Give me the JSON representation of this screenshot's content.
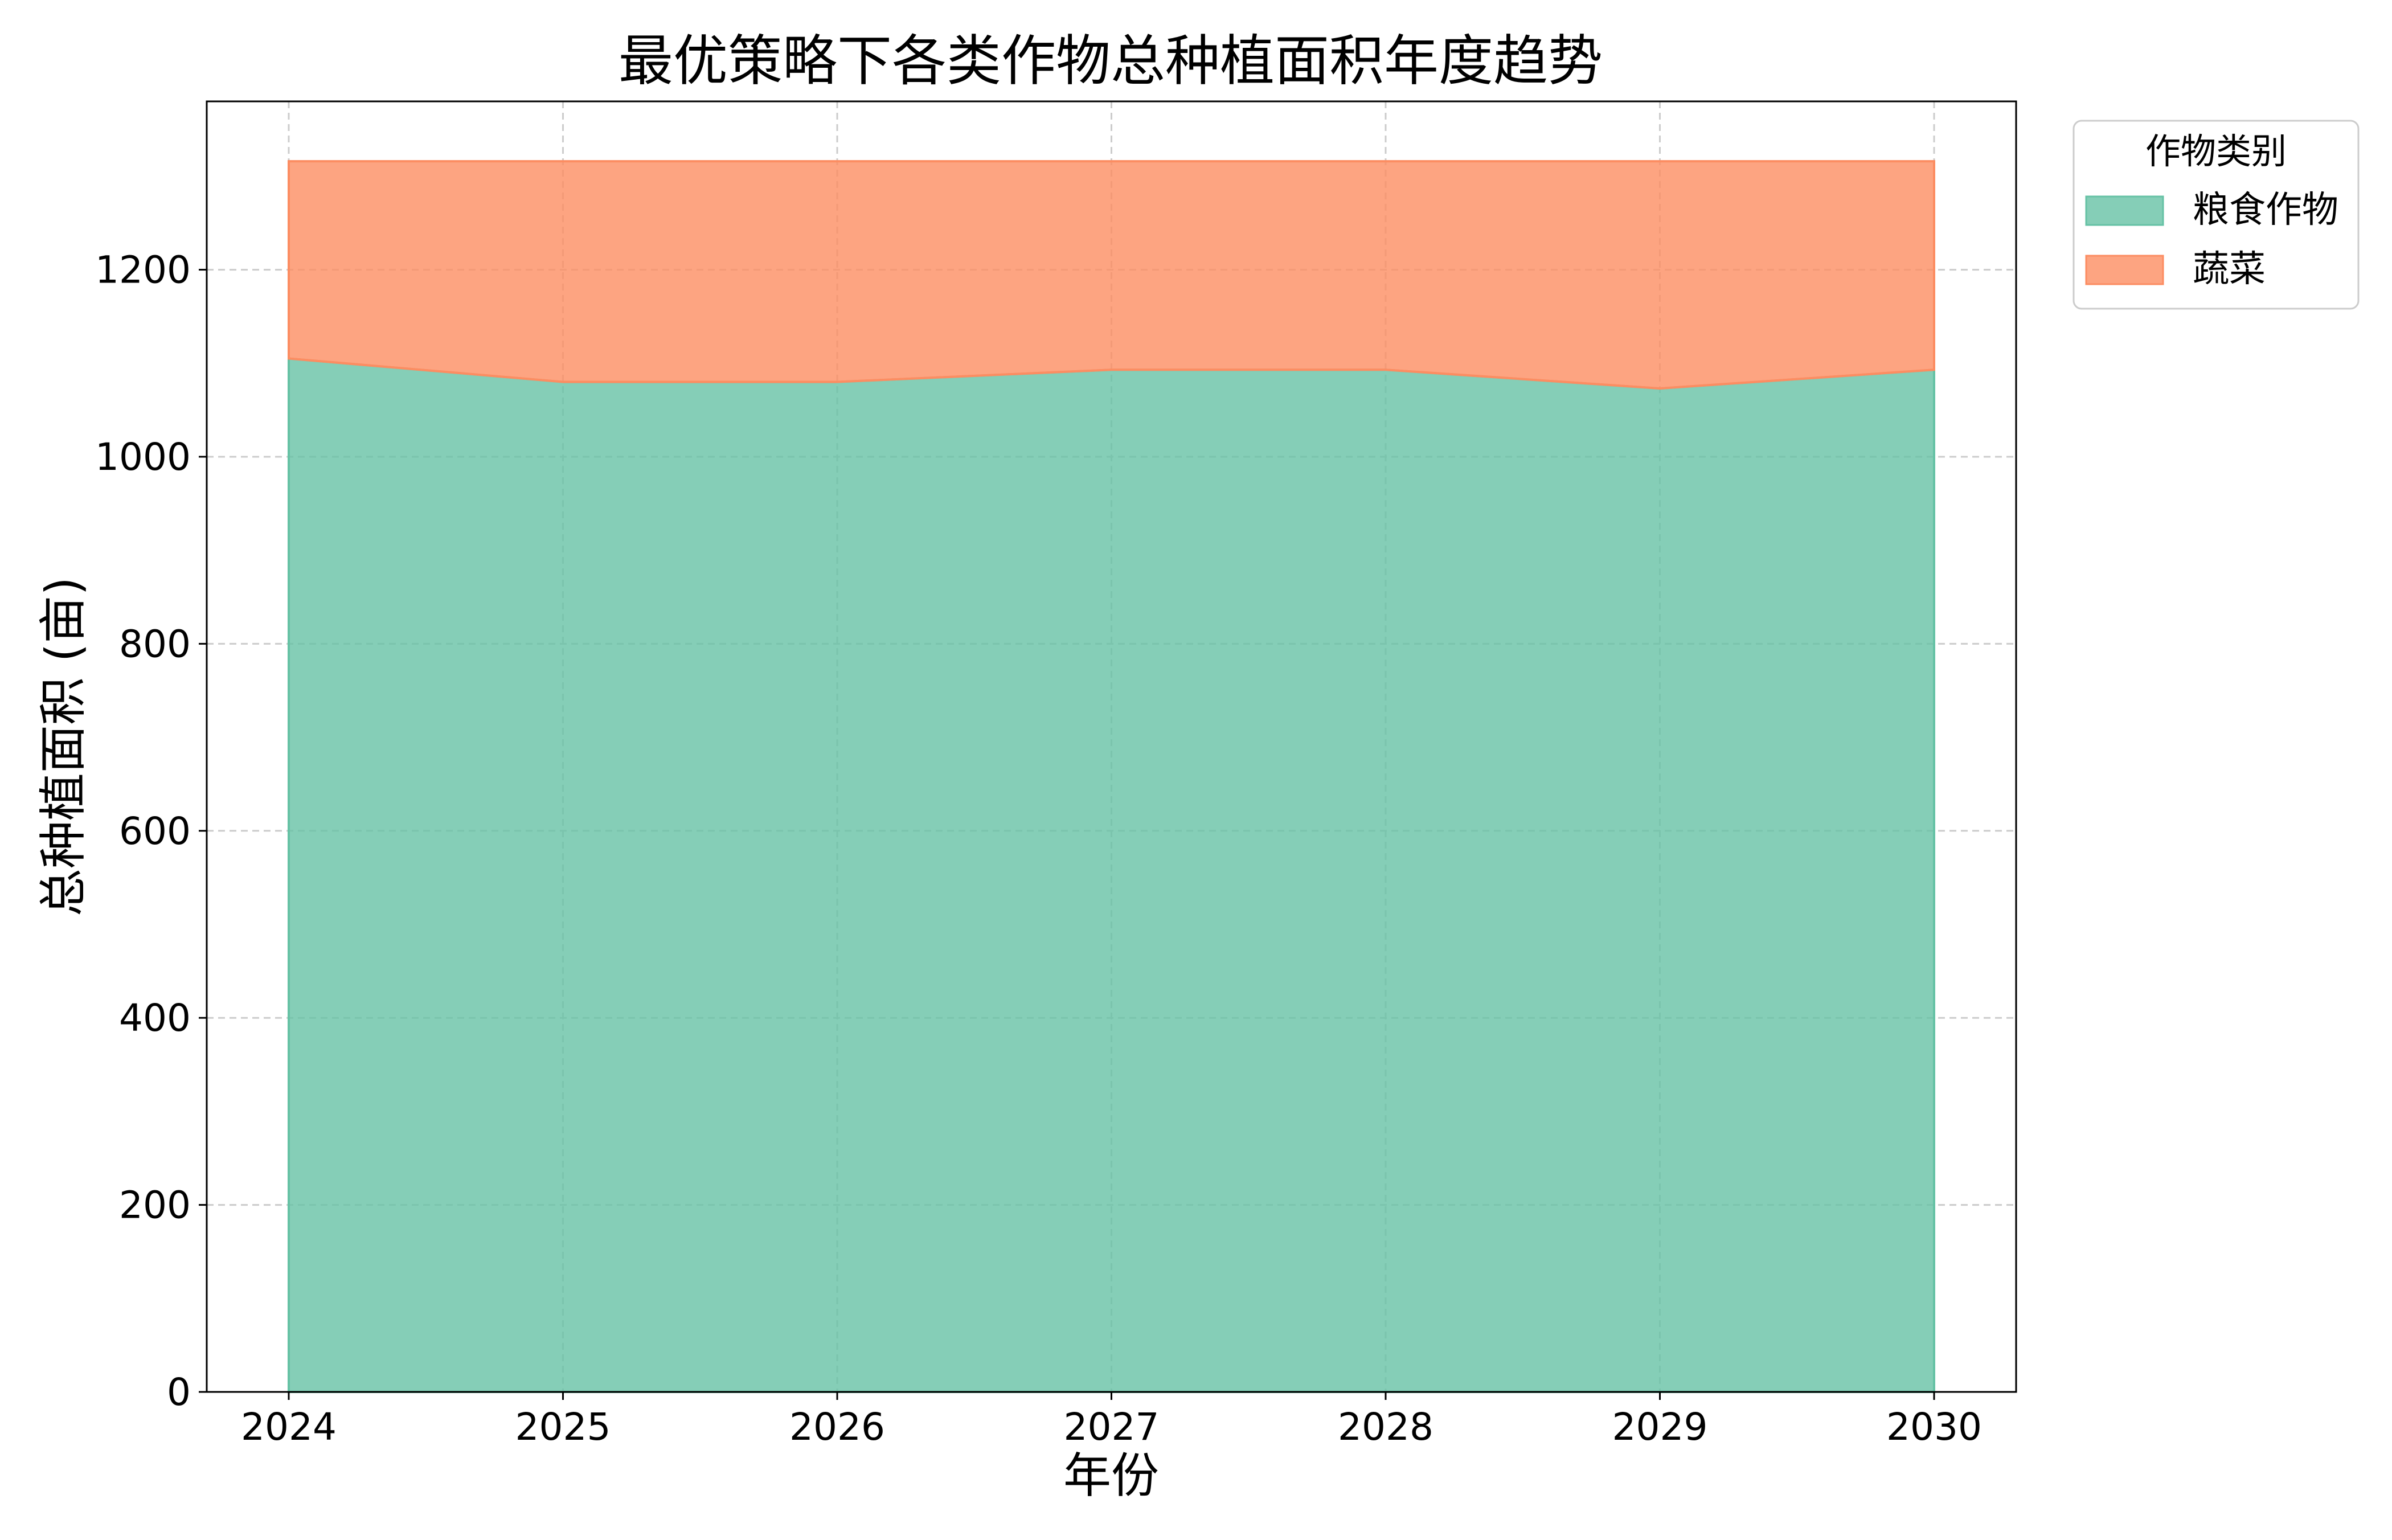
{
  "chart_data": {
    "type": "area",
    "stacked": true,
    "title": "最优策略下各类作物总种植面积年度趋势",
    "xlabel": "年份",
    "ylabel": "总种植面积 (亩)",
    "x": [
      "2024",
      "2025",
      "2026",
      "2027",
      "2028",
      "2029",
      "2030"
    ],
    "ylim": [
      0,
      1380
    ],
    "yticks": [
      0,
      200,
      400,
      600,
      800,
      1000,
      1200
    ],
    "grid": true,
    "legend": {
      "title": "作物类别",
      "placement": "outside-top-right"
    },
    "series": [
      {
        "name": "粮食作物",
        "color": "#66c2a5",
        "values": [
          1105,
          1080,
          1080,
          1093,
          1093,
          1073,
          1093
        ]
      },
      {
        "name": "蔬菜",
        "color": "#fc8d62",
        "values": [
          211,
          236,
          236,
          223,
          223,
          243,
          223
        ]
      }
    ]
  }
}
